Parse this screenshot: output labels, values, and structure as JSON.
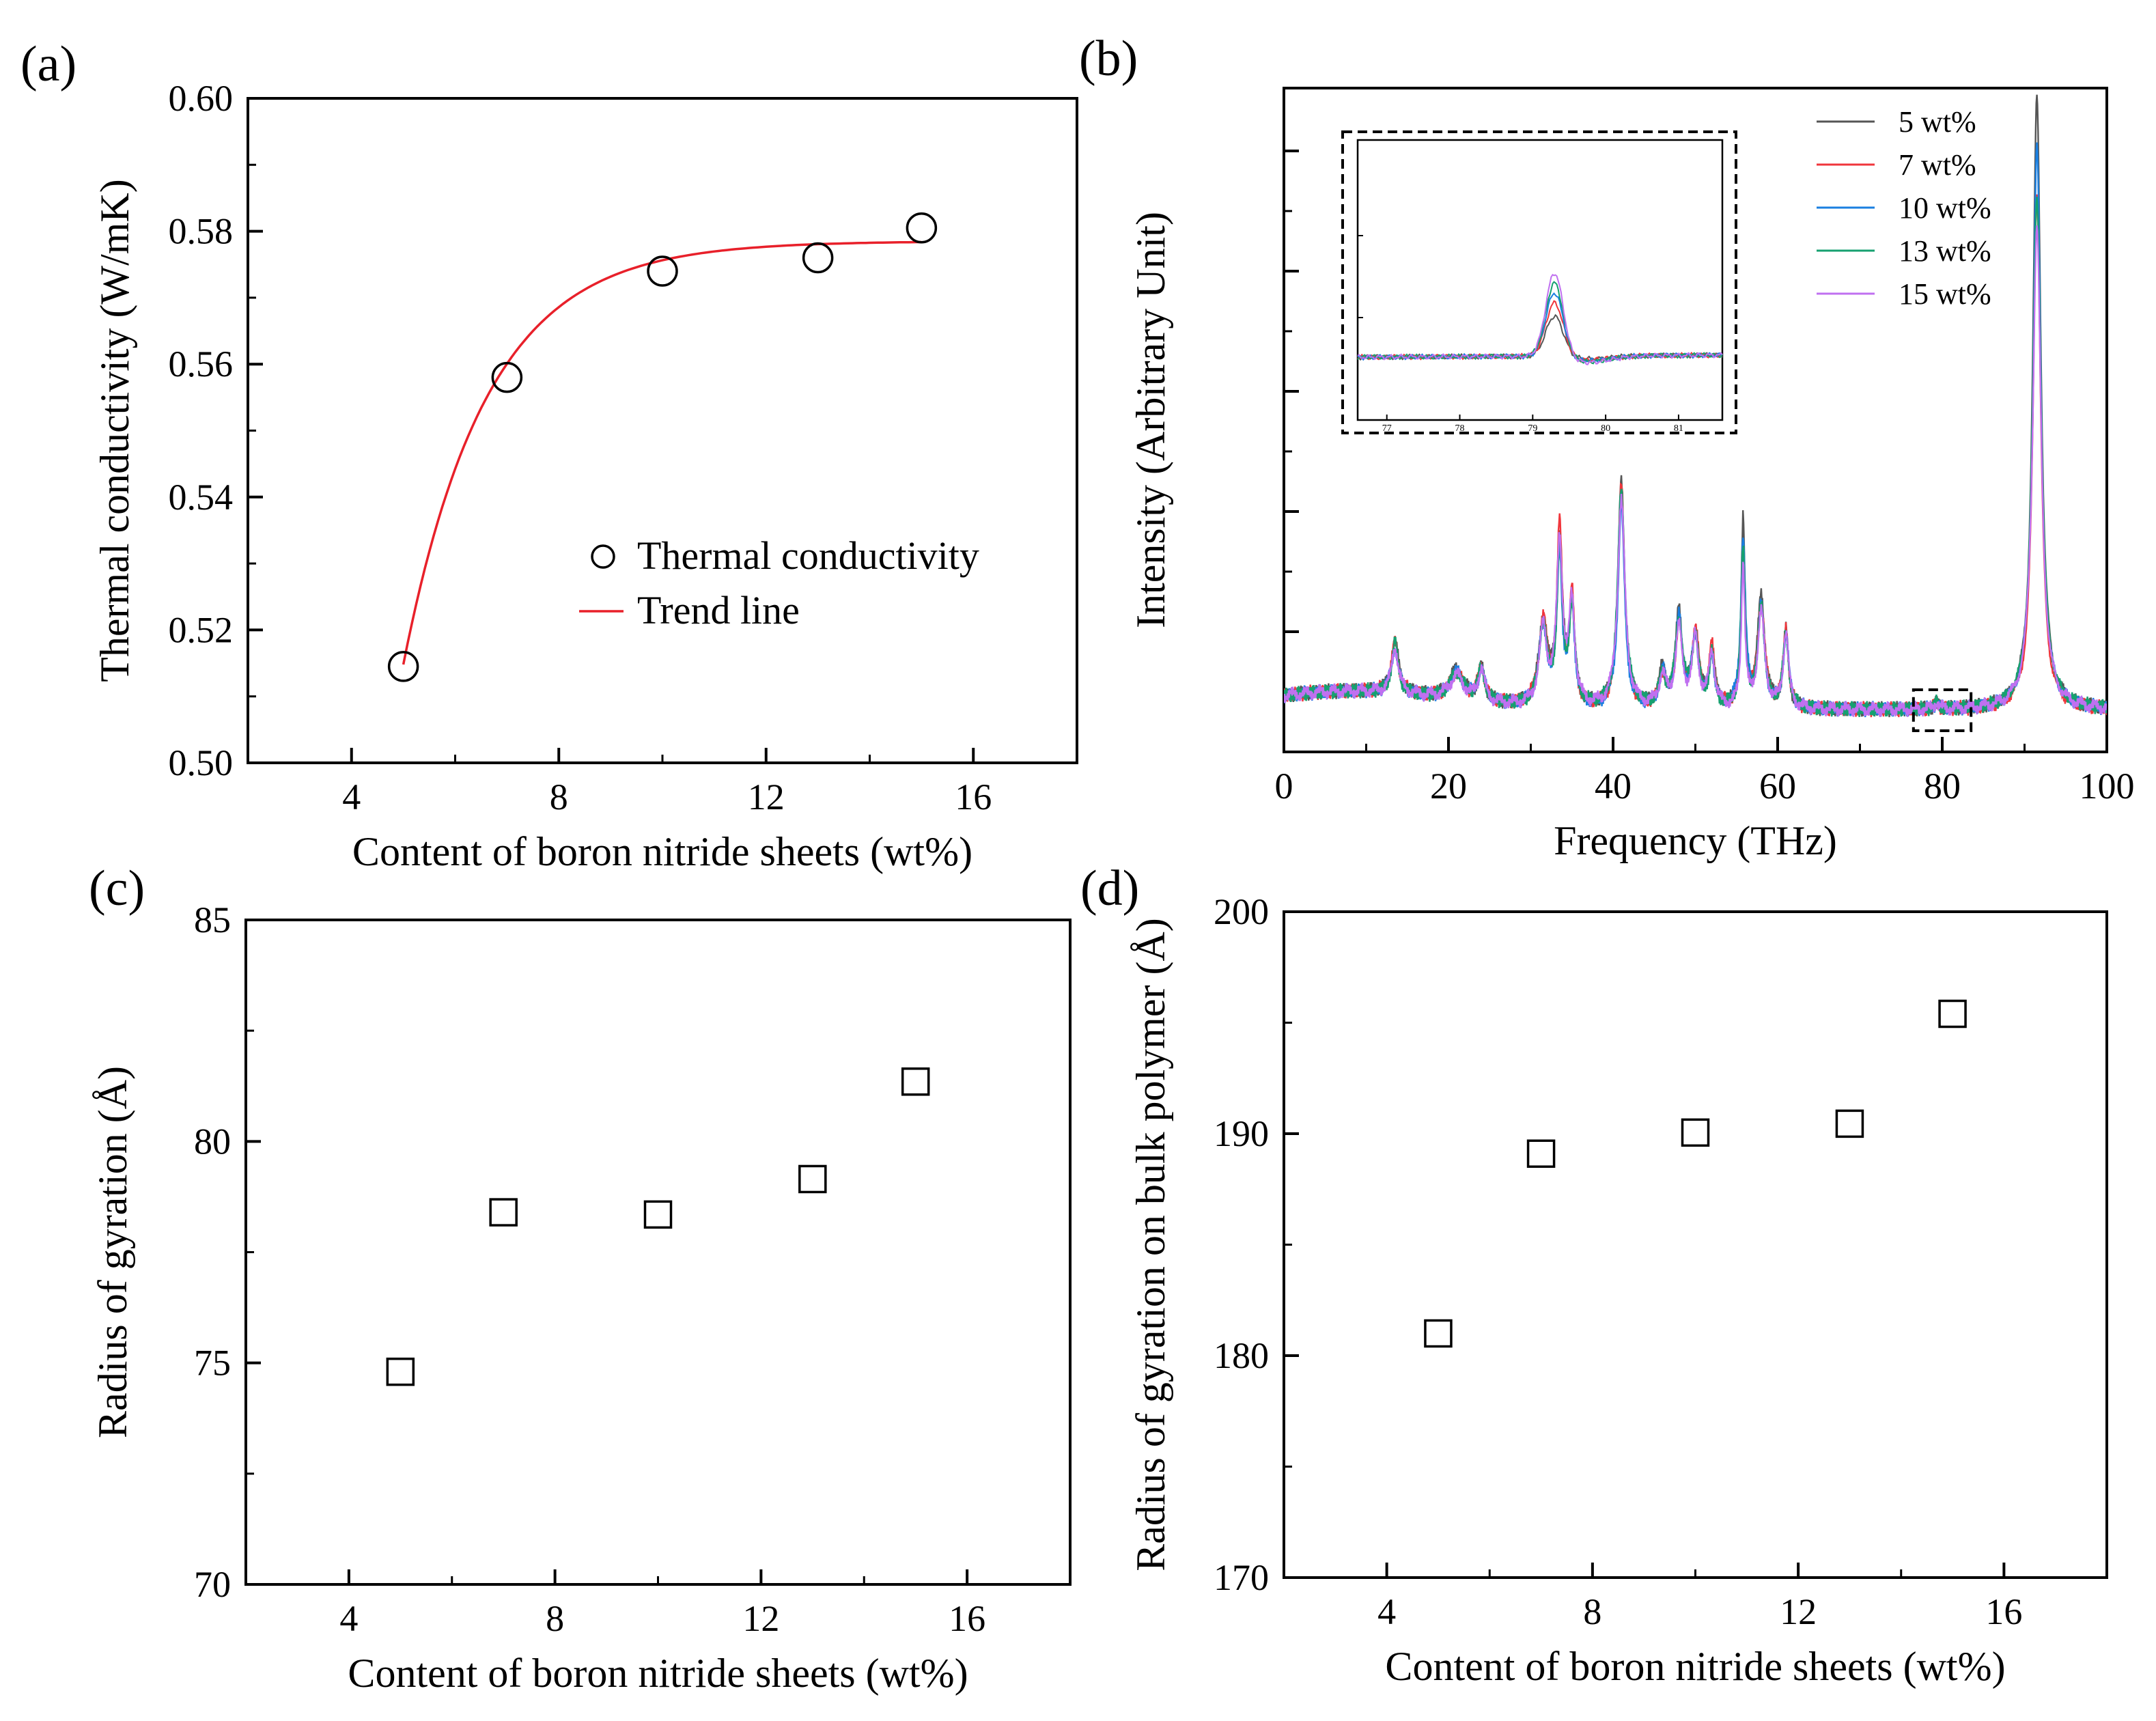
{
  "colors": {
    "axis": "#000000",
    "trend": "#e8202a",
    "series": [
      "#555555",
      "#f0363c",
      "#1a7fe0",
      "#16a070",
      "#c070f0"
    ]
  },
  "chart_data": [
    {
      "id": "a",
      "panel_label": "(a)",
      "type": "scatter",
      "xlabel": "Content of boron nitride sheets (wt%)",
      "ylabel": "Thermal conductivity (W/mK)",
      "xlim": [
        2,
        18
      ],
      "ylim": [
        0.5,
        0.6
      ],
      "xticks": [
        4,
        8,
        12,
        16
      ],
      "xtick_labels": [
        "4",
        "8",
        "12",
        "16"
      ],
      "yticks": [
        0.5,
        0.52,
        0.54,
        0.56,
        0.58,
        0.6
      ],
      "ytick_labels": [
        "0.50",
        "0.52",
        "0.54",
        "0.56",
        "0.58",
        "0.60"
      ],
      "x": [
        5,
        7,
        10,
        13,
        15
      ],
      "y": [
        0.5145,
        0.558,
        0.574,
        0.576,
        0.5805
      ],
      "marker": "circle",
      "trend": {
        "y0": 0.5148,
        "ymax": 0.5785,
        "rate": 0.62,
        "x_start": 5,
        "x_end": 15
      },
      "legend": [
        "Thermal conductivity",
        "Trend line"
      ],
      "legend_position": "center-right"
    },
    {
      "id": "b",
      "panel_label": "(b)",
      "type": "line",
      "xlabel": "Frequency (THz)",
      "ylabel": "Intensity (Arbitrary Unit)",
      "xlim": [
        0,
        100
      ],
      "xticks": [
        0,
        20,
        40,
        60,
        80,
        100
      ],
      "xtick_labels": [
        "0",
        "20",
        "40",
        "60",
        "80",
        "100"
      ],
      "ytick_count": 5,
      "series": [
        {
          "name": "5 wt%",
          "peak_scale": 1.0,
          "phase": 0.0
        },
        {
          "name": "7 wt%",
          "peak_scale": 0.95,
          "phase": 1.1
        },
        {
          "name": "10 wt%",
          "peak_scale": 0.92,
          "phase": 2.3
        },
        {
          "name": "13 wt%",
          "peak_scale": 0.9,
          "phase": 3.7
        },
        {
          "name": "15 wt%",
          "peak_scale": 0.88,
          "phase": 5.2
        }
      ],
      "peaks": [
        [
          13.5,
          0.09,
          0.5
        ],
        [
          21,
          0.05,
          1.0
        ],
        [
          24,
          0.06,
          0.5
        ],
        [
          31.5,
          0.15,
          0.6
        ],
        [
          33.5,
          0.3,
          0.4
        ],
        [
          35,
          0.19,
          0.4
        ],
        [
          41,
          0.4,
          0.5
        ],
        [
          46,
          0.06,
          0.5
        ],
        [
          48,
          0.16,
          0.5
        ],
        [
          50,
          0.13,
          0.5
        ],
        [
          52,
          0.1,
          0.4
        ],
        [
          55.8,
          0.3,
          0.3
        ],
        [
          58,
          0.19,
          0.5
        ],
        [
          61,
          0.14,
          0.4
        ],
        [
          79.3,
          0.012,
          0.3
        ],
        [
          91.5,
          1.0,
          0.6
        ]
      ],
      "legend_position": "top-right",
      "inset": {
        "xlim": [
          76.6,
          81.6
        ],
        "xticks": [
          77,
          78,
          79,
          80,
          81
        ],
        "xtick_labels": [
          "77",
          "78",
          "79",
          "80",
          "81"
        ],
        "highlight_x": [
          76.5,
          83.5
        ]
      }
    },
    {
      "id": "c",
      "panel_label": "(c)",
      "type": "scatter",
      "xlabel": "Content of boron nitride sheets (wt%)",
      "ylabel": "Radius of gyration (Å)",
      "xlim": [
        2,
        18
      ],
      "ylim": [
        70,
        85
      ],
      "xticks": [
        4,
        8,
        12,
        16
      ],
      "xtick_labels": [
        "4",
        "8",
        "12",
        "16"
      ],
      "yticks": [
        70,
        75,
        80,
        85
      ],
      "ytick_labels": [
        "70",
        "75",
        "80",
        "85"
      ],
      "x": [
        5,
        7,
        10,
        13,
        15
      ],
      "y": [
        74.8,
        78.4,
        78.35,
        79.15,
        81.35
      ],
      "marker": "square"
    },
    {
      "id": "d",
      "panel_label": "(d)",
      "type": "scatter",
      "xlabel": "Content of boron nitride sheets (wt%)",
      "ylabel": "Radius of gyration on bulk polymer (Å)",
      "xlim": [
        2,
        18
      ],
      "ylim": [
        170,
        200
      ],
      "xticks": [
        4,
        8,
        12,
        16
      ],
      "xtick_labels": [
        "4",
        "8",
        "12",
        "16"
      ],
      "yticks": [
        170,
        180,
        190,
        200
      ],
      "ytick_labels": [
        "170",
        "180",
        "190",
        "200"
      ],
      "x": [
        5,
        7,
        10,
        13,
        15
      ],
      "y": [
        181,
        189.1,
        190.05,
        190.45,
        195.4
      ],
      "marker": "square"
    }
  ]
}
